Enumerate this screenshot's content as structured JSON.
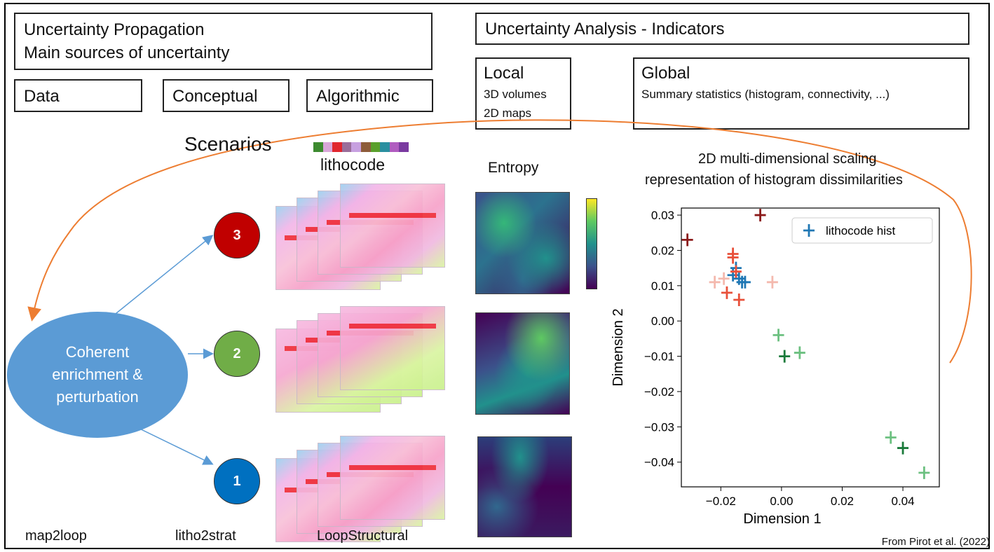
{
  "propagation": {
    "line1": "Uncertainty Propagation",
    "line2": "Main sources of uncertainty"
  },
  "sources": [
    "Data",
    "Conceptual",
    "Algorithmic"
  ],
  "analysis": {
    "title": "Uncertainty Analysis - Indicators"
  },
  "local": {
    "title": "Local",
    "items": [
      "3D volumes",
      "2D maps"
    ]
  },
  "global": {
    "title": "Global",
    "desc": "Summary statistics (histogram, connectivity, ...)"
  },
  "scenarios_label": "Scenarios",
  "lithocode_label": "lithocode",
  "lithocode_colors": [
    "#3d8a2f",
    "#d9a6d9",
    "#e0262e",
    "#9a6d9a",
    "#c7a0e0",
    "#8d5c3a",
    "#5aa02c",
    "#2a8fa0",
    "#b05cc0",
    "#7a3aa0"
  ],
  "entropy_label": "Entropy",
  "ellipse": {
    "lines": [
      "Coherent",
      "enrichment &",
      "perturbation"
    ]
  },
  "scenario_nodes": [
    {
      "num": "3",
      "color": "#c00000"
    },
    {
      "num": "2",
      "color": "#70ad47"
    },
    {
      "num": "1",
      "color": "#0070c0"
    }
  ],
  "bottom_labels": [
    "map2loop",
    "litho2strat",
    "LoopStructural"
  ],
  "credit": "From Pirot et al. (2022)",
  "chart_data": {
    "type": "scatter",
    "title": "2D multi-dimensional scaling representation of histogram dissimilarities",
    "title_lines": [
      "2D multi-dimensional scaling",
      "representation of histogram dissimilarities"
    ],
    "xlabel": "Dimension 1",
    "ylabel": "Dimension 2",
    "xlim": [
      -0.033,
      0.052
    ],
    "ylim": [
      -0.047,
      0.032
    ],
    "xticks": [
      "−0.02",
      "0.00",
      "0.02",
      "0.04"
    ],
    "xtick_values": [
      -0.02,
      0.0,
      0.02,
      0.04
    ],
    "yticks": [
      "0.03",
      "0.02",
      "0.01",
      "0.00",
      "−0.01",
      "−0.02",
      "−0.03",
      "−0.04"
    ],
    "ytick_values": [
      0.03,
      0.02,
      0.01,
      0.0,
      -0.01,
      -0.02,
      -0.03,
      -0.04
    ],
    "legend": "lithocode hist",
    "legend_location": "upper right",
    "series": [
      {
        "name": "lithocode hist",
        "color": "#1f77b4",
        "points": [
          [
            -0.016,
            0.013
          ],
          [
            -0.015,
            0.015
          ],
          [
            -0.014,
            0.012
          ],
          [
            -0.013,
            0.011
          ],
          [
            -0.012,
            0.011
          ]
        ]
      },
      {
        "color": "#e8503a",
        "points": [
          [
            -0.016,
            0.018
          ],
          [
            -0.015,
            0.014
          ],
          [
            -0.018,
            0.008
          ],
          [
            -0.014,
            0.006
          ],
          [
            -0.016,
            0.019
          ]
        ]
      },
      {
        "color": "#f4b9ae",
        "points": [
          [
            -0.022,
            0.011
          ],
          [
            -0.003,
            0.011
          ],
          [
            -0.019,
            0.012
          ]
        ]
      },
      {
        "color": "#1a7a3a",
        "points": [
          [
            0.001,
            -0.01
          ],
          [
            0.04,
            -0.036
          ]
        ]
      },
      {
        "color": "#6cc080",
        "points": [
          [
            -0.001,
            -0.004
          ],
          [
            0.006,
            -0.009
          ],
          [
            0.036,
            -0.033
          ],
          [
            0.047,
            -0.043
          ]
        ]
      },
      {
        "color": "#8b1a1a",
        "points": [
          [
            -0.031,
            0.023
          ],
          [
            -0.007,
            0.03
          ]
        ]
      }
    ]
  }
}
